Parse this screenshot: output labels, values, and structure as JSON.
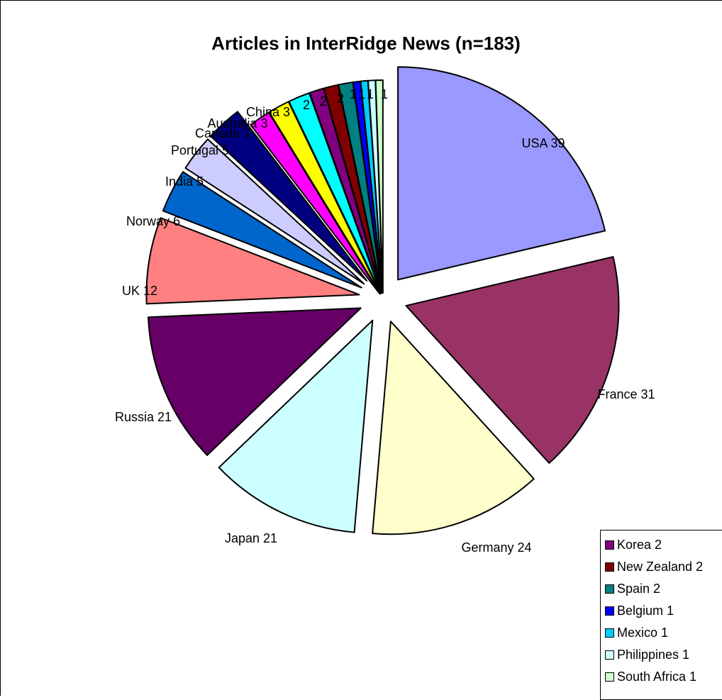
{
  "chart_data": {
    "type": "pie",
    "title": "Articles in InterRidge News (n=183)",
    "exploded": true,
    "slices": [
      {
        "label": "USA 39",
        "category": "USA",
        "value": 39,
        "color": "#9999FF"
      },
      {
        "label": "France 31",
        "category": "France",
        "value": 31,
        "color": "#993366"
      },
      {
        "label": "Germany 24",
        "category": "Germany",
        "value": 24,
        "color": "#FFFFCC"
      },
      {
        "label": "Japan 21",
        "category": "Japan",
        "value": 21,
        "color": "#CCFFFF"
      },
      {
        "label": "Russia 21",
        "category": "Russia",
        "value": 21,
        "color": "#660066"
      },
      {
        "label": "UK 12",
        "category": "UK",
        "value": 12,
        "color": "#FF8080"
      },
      {
        "label": "Norway 6",
        "category": "Norway",
        "value": 6,
        "color": "#0066CC"
      },
      {
        "label": "India 5",
        "category": "India",
        "value": 5,
        "color": "#CCCCFF"
      },
      {
        "label": "Portugal 5",
        "category": "Portugal",
        "value": 5,
        "color": "#000080"
      },
      {
        "label": "Canada 3",
        "category": "Canada",
        "value": 3,
        "color": "#FF00FF"
      },
      {
        "label": "Australia 3",
        "category": "Australia",
        "value": 3,
        "color": "#FFFF00"
      },
      {
        "label": "China 3",
        "category": "China",
        "value": 3,
        "color": "#00FFFF"
      },
      {
        "label": "2",
        "category": "Korea",
        "value": 2,
        "color": "#800080"
      },
      {
        "label": "2",
        "category": "New Zealand",
        "value": 2,
        "color": "#800000"
      },
      {
        "label": "2",
        "category": "Spain",
        "value": 2,
        "color": "#008080"
      },
      {
        "label": "1",
        "category": "Belgium",
        "value": 1,
        "color": "#0000FF"
      },
      {
        "label": "1",
        "category": "Mexico",
        "value": 1,
        "color": "#00CCFF"
      },
      {
        "label": "1",
        "category": "Philippines",
        "value": 1,
        "color": "#CCFFFF"
      },
      {
        "label": "1",
        "category": "South Africa",
        "value": 1,
        "color": "#CCFFCC"
      }
    ],
    "legend": {
      "placement": "bottom-right",
      "entries": [
        {
          "label": "Korea 2",
          "color": "#800080"
        },
        {
          "label": "New Zealand 2",
          "color": "#800000"
        },
        {
          "label": "Spain 2",
          "color": "#008080"
        },
        {
          "label": "Belgium 1",
          "color": "#0000FF"
        },
        {
          "label": "Mexico 1",
          "color": "#00CCFF"
        },
        {
          "label": "Philippines 1",
          "color": "#CCFFFF"
        },
        {
          "label": "South Africa 1",
          "color": "#CCFFCC"
        }
      ]
    }
  }
}
